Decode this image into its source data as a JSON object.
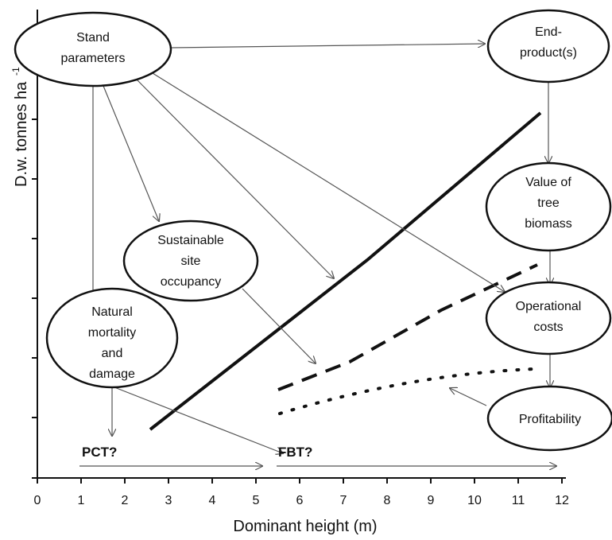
{
  "axes": {
    "xlabel": "Dominant height (m)",
    "ylabel": "D.w. tonnes ha",
    "ylabel_sup": "-1",
    "x_ticks": [
      "0",
      "1",
      "2",
      "3",
      "4",
      "5",
      "6",
      "7",
      "8",
      "9",
      "10",
      "11",
      "12"
    ]
  },
  "nodes": {
    "stand": [
      "Stand",
      "parameters"
    ],
    "end": [
      "End-",
      "product(s)"
    ],
    "value": [
      "Value of",
      "tree",
      "biomass"
    ],
    "sustainable": [
      "Sustainable",
      "site",
      "occupancy"
    ],
    "operational": [
      "Operational",
      "costs"
    ],
    "natural": [
      "Natural",
      "mortality",
      "and",
      "damage"
    ],
    "profitability": [
      "Profitability"
    ]
  },
  "labels": {
    "pct": "PCT?",
    "fbt": "FBT?"
  },
  "colors": {
    "ink": "#111111",
    "arrow": "#555555"
  }
}
